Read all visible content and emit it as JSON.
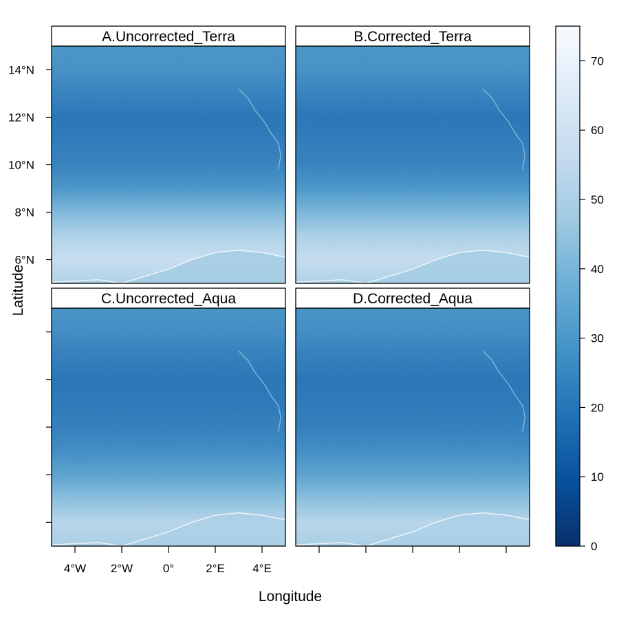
{
  "chart_data": {
    "type": "heatmap",
    "xlabel": "Longitude",
    "ylabel": "Latitude",
    "x_ticks": [
      "4°W",
      "2°W",
      "0°",
      "2°E",
      "4°E"
    ],
    "x_tick_values": [
      -4,
      -2,
      0,
      2,
      4
    ],
    "y_ticks": [
      "6°N",
      "8°N",
      "10°N",
      "12°N",
      "14°N"
    ],
    "y_tick_values": [
      6,
      8,
      10,
      12,
      14
    ],
    "xlim": [
      -5,
      5
    ],
    "ylim": [
      5,
      15
    ],
    "colorbar": {
      "ticks": [
        "0",
        "10",
        "20",
        "30",
        "40",
        "50",
        "60",
        "70"
      ],
      "tick_values": [
        0,
        10,
        20,
        30,
        40,
        50,
        60,
        70
      ],
      "range": [
        0,
        75
      ],
      "colors": [
        "#08306b",
        "#08519c",
        "#2171b5",
        "#4292c6",
        "#6baed6",
        "#9ecae1",
        "#c6dbef",
        "#deebf7",
        "#f7fbff"
      ]
    },
    "panels": [
      {
        "title": "A.Uncorrected_Terra",
        "lat_profile": [
          [
            5,
            50
          ],
          [
            6,
            56
          ],
          [
            7,
            50
          ],
          [
            8,
            40
          ],
          [
            9,
            28
          ],
          [
            10,
            22
          ],
          [
            11,
            20
          ],
          [
            12,
            18
          ],
          [
            13,
            22
          ],
          [
            14,
            26
          ],
          [
            15,
            28
          ]
        ]
      },
      {
        "title": "B.Corrected_Terra",
        "lat_profile": [
          [
            5,
            50
          ],
          [
            6,
            55
          ],
          [
            7,
            49
          ],
          [
            8,
            39
          ],
          [
            9,
            28
          ],
          [
            10,
            22
          ],
          [
            11,
            20
          ],
          [
            12,
            18
          ],
          [
            13,
            22
          ],
          [
            14,
            26
          ],
          [
            15,
            28
          ]
        ]
      },
      {
        "title": "C.Uncorrected_Aqua",
        "lat_profile": [
          [
            5,
            48
          ],
          [
            6,
            52
          ],
          [
            7,
            42
          ],
          [
            8,
            32
          ],
          [
            9,
            25
          ],
          [
            10,
            21
          ],
          [
            11,
            19
          ],
          [
            12,
            18
          ],
          [
            13,
            21
          ],
          [
            14,
            25
          ],
          [
            15,
            27
          ]
        ]
      },
      {
        "title": "D.Corrected_Aqua",
        "lat_profile": [
          [
            5,
            48
          ],
          [
            6,
            52
          ],
          [
            7,
            42
          ],
          [
            8,
            32
          ],
          [
            9,
            25
          ],
          [
            10,
            21
          ],
          [
            11,
            19
          ],
          [
            12,
            18
          ],
          [
            13,
            21
          ],
          [
            14,
            25
          ],
          [
            15,
            27
          ]
        ]
      }
    ]
  }
}
